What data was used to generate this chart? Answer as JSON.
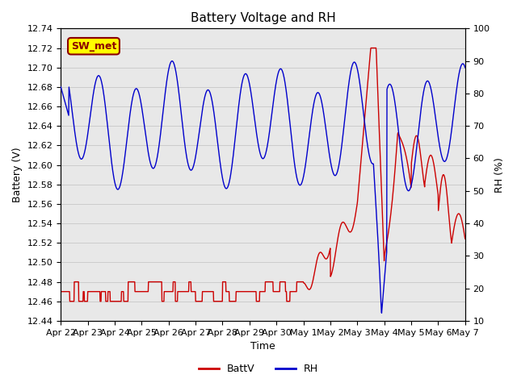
{
  "title": "Battery Voltage and RH",
  "xlabel": "Time",
  "ylabel_left": "Battery (V)",
  "ylabel_right": "RH (%)",
  "left_ylim": [
    12.44,
    12.74
  ],
  "right_ylim": [
    10,
    100
  ],
  "left_yticks": [
    12.44,
    12.46,
    12.48,
    12.5,
    12.52,
    12.54,
    12.56,
    12.58,
    12.6,
    12.62,
    12.64,
    12.66,
    12.68,
    12.7,
    12.72,
    12.74
  ],
  "right_yticks": [
    10,
    20,
    30,
    40,
    50,
    60,
    70,
    80,
    90,
    100
  ],
  "xtick_labels": [
    "Apr 22",
    "Apr 23",
    "Apr 24",
    "Apr 25",
    "Apr 26",
    "Apr 27",
    "Apr 28",
    "Apr 29",
    "Apr 30",
    "May 1",
    "May 2",
    "May 3",
    "May 4",
    "May 5",
    "May 6",
    "May 7"
  ],
  "batt_color": "#cc0000",
  "rh_color": "#0000cc",
  "legend_label_batt": "BattV",
  "legend_label_rh": "RH",
  "annotation_text": "SW_met",
  "annotation_bg": "#ffff00",
  "annotation_border": "#8b0000",
  "grid_color": "#cccccc",
  "bg_color": "#e8e8e8",
  "title_fontsize": 11,
  "axis_fontsize": 9,
  "tick_fontsize": 8,
  "legend_fontsize": 9
}
